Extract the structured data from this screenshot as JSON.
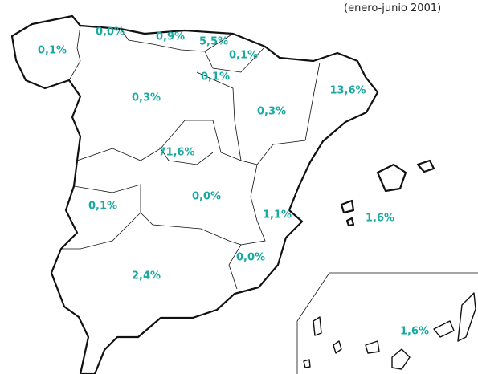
{
  "subtitle": "(enero-junio 2001)",
  "regions": [
    {
      "label": "0,1%"
    },
    {
      "label": "0,0%"
    },
    {
      "label": "0,9%"
    },
    {
      "label": "5,5%"
    },
    {
      "label": "0,1%"
    },
    {
      "label": "0,1%"
    },
    {
      "label": "0,3%"
    },
    {
      "label": "0,3%"
    },
    {
      "label": "13,6%"
    },
    {
      "label": "71,6%"
    },
    {
      "label": "0,0%"
    },
    {
      "label": "0,1%"
    },
    {
      "label": "1,1%"
    },
    {
      "label": "1,6%"
    },
    {
      "label": "0,0%"
    },
    {
      "label": "2,4%"
    },
    {
      "label": "1,6%"
    }
  ]
}
